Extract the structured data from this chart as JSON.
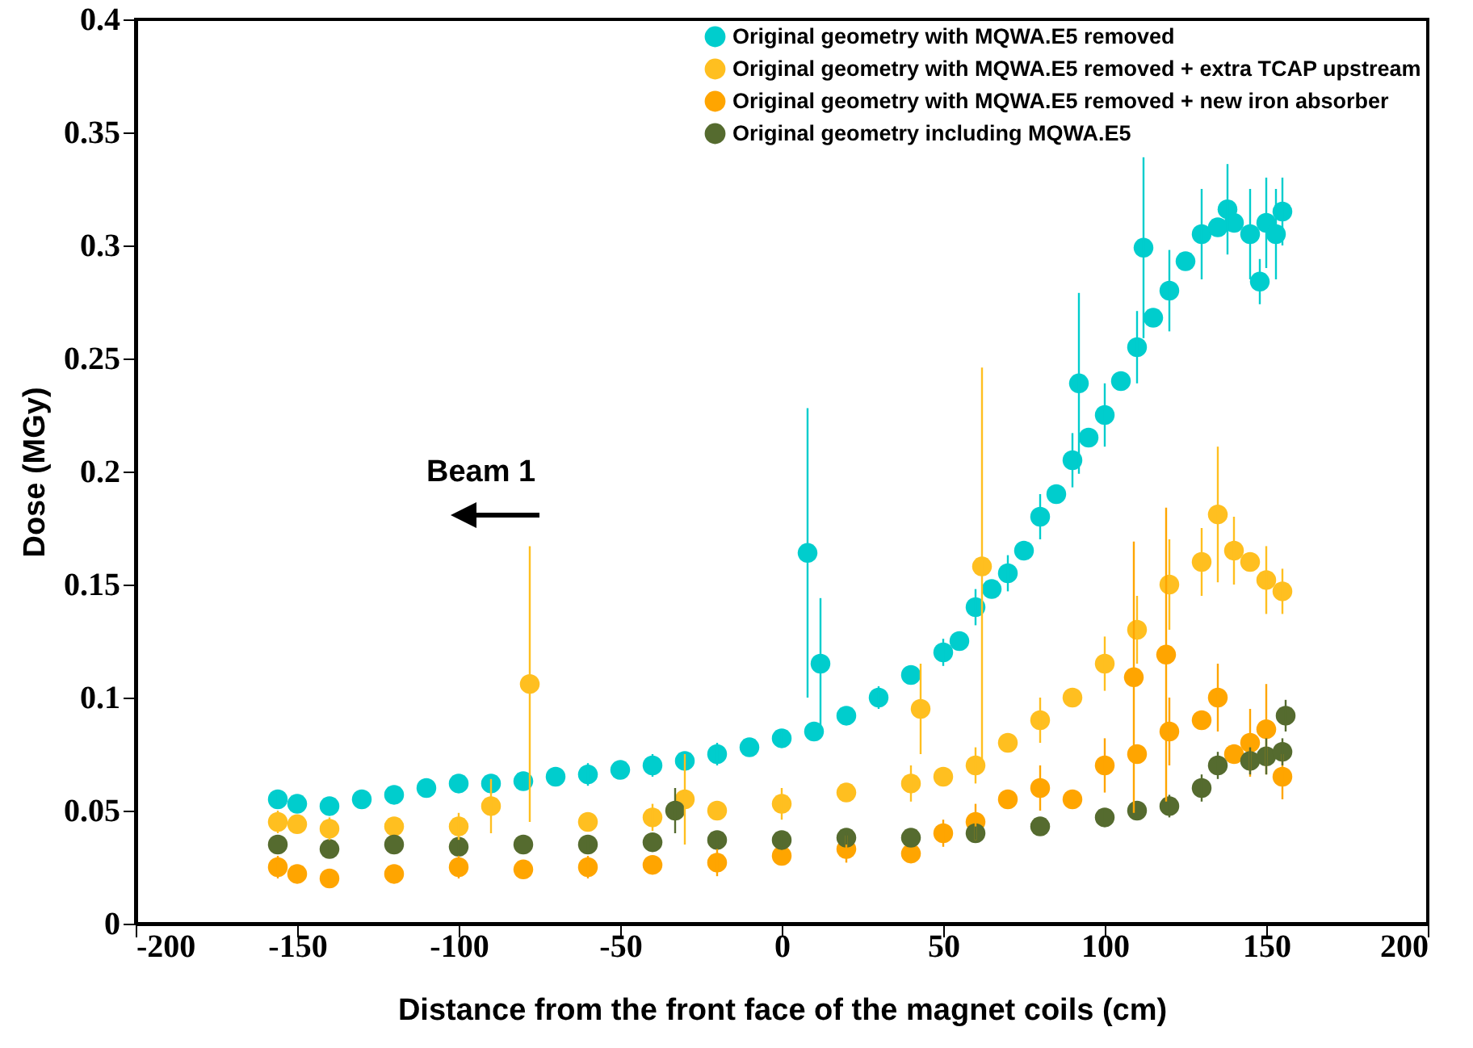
{
  "chart_data": {
    "type": "scatter",
    "xlabel": "Distance from the front face of the magnet coils (cm)",
    "ylabel": "Dose (MGy)",
    "xlim": [
      -200,
      200
    ],
    "xticks": [
      -200,
      -150,
      -100,
      -50,
      0,
      50,
      100,
      150,
      200
    ],
    "ylim": [
      0,
      0.4
    ],
    "yticks": [
      0,
      0.05,
      0.1,
      0.15,
      0.2,
      0.25,
      0.3,
      0.35,
      0.4
    ],
    "grid": false,
    "legend": "top right",
    "marker": "circle",
    "annotations": [
      "Beam 1"
    ],
    "series": [
      {
        "name": "Original geometry with MQWA.E5 removed",
        "color": "#00cdcd",
        "x": [
          -156,
          -150,
          -140,
          -130,
          -120,
          -110,
          -100,
          -90,
          -80,
          -70,
          -60,
          -50,
          -40,
          -30,
          -20,
          -10,
          0,
          8,
          10,
          12,
          20,
          30,
          40,
          50,
          55,
          60,
          65,
          70,
          75,
          80,
          85,
          90,
          92,
          95,
          100,
          105,
          110,
          112,
          115,
          120,
          125,
          130,
          135,
          138,
          140,
          145,
          148,
          150,
          153,
          155
        ],
        "values": [
          0.055,
          0.053,
          0.052,
          0.055,
          0.057,
          0.06,
          0.062,
          0.062,
          0.063,
          0.065,
          0.066,
          0.068,
          0.07,
          0.072,
          0.075,
          0.078,
          0.082,
          0.164,
          0.085,
          0.115,
          0.092,
          0.1,
          0.11,
          0.12,
          0.125,
          0.14,
          0.148,
          0.155,
          0.165,
          0.18,
          0.19,
          0.205,
          0.239,
          0.215,
          0.225,
          0.24,
          0.255,
          0.299,
          0.268,
          0.28,
          0.293,
          0.305,
          0.308,
          0.316,
          0.31,
          0.305,
          0.284,
          0.31,
          0.305,
          0.315
        ],
        "errors": [
          0.004,
          null,
          null,
          0.004,
          null,
          null,
          0.004,
          null,
          0.004,
          null,
          0.005,
          null,
          0.005,
          null,
          0.005,
          null,
          0.004,
          0.064,
          null,
          0.029,
          null,
          0.005,
          null,
          0.006,
          null,
          0.008,
          null,
          0.008,
          null,
          0.01,
          null,
          0.012,
          0.04,
          null,
          0.014,
          null,
          0.016,
          0.04,
          null,
          0.018,
          null,
          0.02,
          null,
          0.02,
          null,
          0.02,
          0.01,
          0.02,
          0.02,
          0.015
        ]
      },
      {
        "name": "Original geometry with MQWA.E5 removed + extra TCAP upstream",
        "color": "#ffbf20",
        "x": [
          -156,
          -150,
          -140,
          -120,
          -100,
          -90,
          -78,
          -60,
          -40,
          -30,
          -20,
          0,
          20,
          40,
          43,
          50,
          60,
          62,
          70,
          80,
          90,
          100,
          110,
          120,
          130,
          135,
          140,
          145,
          150,
          155
        ],
        "values": [
          0.045,
          0.044,
          0.042,
          0.043,
          0.043,
          0.052,
          0.106,
          0.045,
          0.047,
          0.055,
          0.05,
          0.053,
          0.058,
          0.062,
          0.095,
          0.065,
          0.07,
          0.158,
          0.08,
          0.09,
          0.1,
          0.115,
          0.13,
          0.15,
          0.16,
          0.181,
          0.165,
          0.16,
          0.152,
          0.147
        ],
        "errors": [
          0.005,
          null,
          0.005,
          null,
          0.006,
          0.012,
          0.061,
          null,
          0.006,
          0.02,
          null,
          0.007,
          null,
          0.008,
          0.02,
          null,
          0.008,
          0.088,
          null,
          0.01,
          null,
          0.012,
          0.015,
          0.02,
          0.015,
          0.03,
          0.015,
          null,
          0.015,
          0.01
        ]
      },
      {
        "name": "Original geometry with  MQWA.E5 removed + new iron absorber",
        "color": "#ffa500",
        "x": [
          -156,
          -150,
          -140,
          -120,
          -100,
          -80,
          -60,
          -40,
          -20,
          0,
          20,
          40,
          50,
          60,
          70,
          80,
          90,
          100,
          109,
          110,
          119,
          120,
          130,
          135,
          140,
          145,
          150,
          155
        ],
        "values": [
          0.025,
          0.022,
          0.02,
          0.022,
          0.025,
          0.024,
          0.025,
          0.026,
          0.027,
          0.03,
          0.033,
          0.031,
          0.04,
          0.045,
          0.055,
          0.06,
          0.055,
          0.07,
          0.109,
          0.075,
          0.119,
          0.085,
          0.09,
          0.1,
          0.075,
          0.08,
          0.086,
          0.065
        ],
        "errors": [
          0.005,
          null,
          0.004,
          null,
          0.005,
          null,
          0.005,
          null,
          0.006,
          null,
          0.006,
          null,
          0.006,
          0.008,
          null,
          0.01,
          null,
          0.012,
          0.06,
          null,
          0.065,
          0.015,
          null,
          0.015,
          null,
          0.015,
          0.02,
          0.01
        ]
      },
      {
        "name": "Original geometry including MQWA.E5",
        "color": "#556b2f",
        "x": [
          -156,
          -140,
          -120,
          -100,
          -80,
          -60,
          -40,
          -33,
          -20,
          0,
          20,
          40,
          60,
          80,
          100,
          110,
          120,
          130,
          135,
          145,
          150,
          155,
          156
        ],
        "values": [
          0.035,
          0.033,
          0.035,
          0.034,
          0.035,
          0.035,
          0.036,
          0.05,
          0.037,
          0.037,
          0.038,
          0.038,
          0.04,
          0.043,
          0.047,
          0.05,
          0.052,
          0.06,
          0.07,
          0.072,
          0.074,
          0.076,
          0.092
        ],
        "errors": [
          null,
          0.003,
          null,
          0.003,
          null,
          0.003,
          null,
          0.01,
          0.003,
          0.003,
          0.003,
          null,
          0.003,
          null,
          0.004,
          null,
          0.005,
          0.006,
          0.006,
          0.006,
          0.008,
          0.006,
          0.007
        ]
      }
    ]
  }
}
